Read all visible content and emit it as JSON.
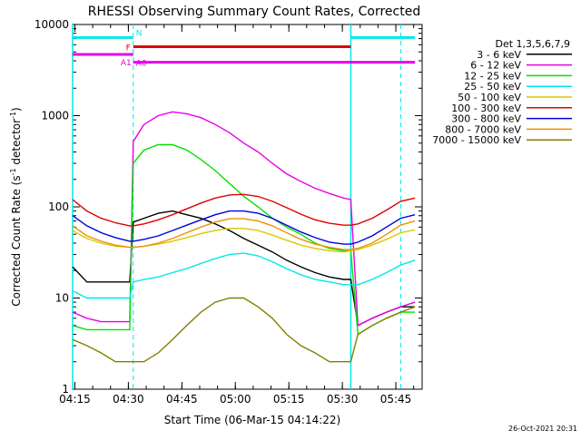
{
  "chart_data": {
    "type": "line",
    "title": "RHESSI Observing Summary Count Rates, Corrected",
    "xlabel": "Start Time (06-Mar-15 04:14:22)",
    "ylabel": "Corrected Count Rate (s",
    "ylabel_sup": "-1",
    "ylabel_mid": " detector",
    "ylabel_sup2": "-1",
    "ylabel_end": ")",
    "yscale": "log",
    "xlim": [
      0,
      98
    ],
    "ylim": [
      1,
      10000
    ],
    "x_ticks": [
      {
        "min": 0.63,
        "label": "04:15"
      },
      {
        "min": 15.63,
        "label": "04:30"
      },
      {
        "min": 30.63,
        "label": "04:45"
      },
      {
        "min": 45.63,
        "label": "05:00"
      },
      {
        "min": 60.63,
        "label": "05:15"
      },
      {
        "min": 75.63,
        "label": "05:30"
      },
      {
        "min": 90.63,
        "label": "05:45"
      }
    ],
    "y_ticks": [
      {
        "value": 1,
        "label": "1"
      },
      {
        "value": 10,
        "label": "10"
      },
      {
        "value": 100,
        "label": "100"
      },
      {
        "value": 1000,
        "label": "1000"
      },
      {
        "value": 10000,
        "label": "10000"
      }
    ],
    "legend_title": "Det 1,3,5,6,7,9",
    "legend_position": "right",
    "x": [
      0,
      4,
      8,
      12,
      16,
      17,
      20,
      24,
      28,
      32,
      36,
      40,
      44,
      48,
      52,
      56,
      60,
      64,
      68,
      72,
      76,
      78,
      80,
      84,
      88,
      92,
      96
    ],
    "series": [
      {
        "name": "3 - 6 keV",
        "color": "#000000",
        "values": [
          22,
          15,
          15,
          15,
          15,
          68,
          75,
          85,
          90,
          82,
          75,
          65,
          55,
          45,
          38,
          32,
          26,
          22,
          19,
          17,
          16,
          16,
          5,
          6,
          7,
          8,
          8
        ]
      },
      {
        "name": "6 - 12 keV",
        "color": "#e800e8",
        "values": [
          7,
          6,
          5.5,
          5.5,
          5.5,
          520,
          800,
          1000,
          1100,
          1050,
          950,
          800,
          650,
          500,
          400,
          300,
          230,
          190,
          160,
          140,
          125,
          120,
          5,
          6,
          7,
          8,
          9
        ]
      },
      {
        "name": "12 - 25 keV",
        "color": "#00e000",
        "values": [
          5,
          4.5,
          4.5,
          4.5,
          4.5,
          300,
          420,
          480,
          480,
          420,
          330,
          250,
          180,
          130,
          100,
          75,
          60,
          50,
          40,
          35,
          33,
          33,
          4,
          5,
          6,
          7,
          7
        ]
      },
      {
        "name": "25 - 50 keV",
        "color": "#00e8e8",
        "values": [
          12,
          10,
          10,
          10,
          10,
          15,
          16,
          17,
          19,
          21,
          24,
          27,
          30,
          31,
          29,
          25,
          21,
          18,
          16,
          15,
          14,
          14,
          14,
          16,
          19,
          23,
          26
        ]
      },
      {
        "name": "50 - 100 keV",
        "color": "#d8c800",
        "values": [
          55,
          45,
          40,
          37,
          36,
          36,
          37,
          39,
          42,
          46,
          51,
          55,
          58,
          58,
          55,
          49,
          43,
          38,
          35,
          33,
          32,
          33,
          34,
          38,
          44,
          52,
          56
        ]
      },
      {
        "name": "100 - 300 keV",
        "color": "#e00000",
        "values": [
          120,
          90,
          75,
          67,
          62,
          62,
          65,
          72,
          82,
          95,
          110,
          125,
          135,
          137,
          130,
          115,
          98,
          83,
          72,
          66,
          63,
          63,
          65,
          75,
          92,
          115,
          125
        ]
      },
      {
        "name": "300 - 800 keV",
        "color": "#0000e0",
        "values": [
          80,
          62,
          52,
          46,
          42,
          42,
          44,
          48,
          55,
          63,
          72,
          82,
          90,
          90,
          85,
          75,
          63,
          53,
          46,
          41,
          39,
          39,
          41,
          48,
          60,
          75,
          82
        ]
      },
      {
        "name": "800 - 7000 keV",
        "color": "#f09000",
        "values": [
          62,
          48,
          42,
          38,
          36,
          36,
          37,
          40,
          45,
          52,
          60,
          68,
          74,
          74,
          70,
          62,
          52,
          44,
          39,
          36,
          34,
          34,
          35,
          40,
          50,
          63,
          70
        ]
      },
      {
        "name": "7000 - 15000 keV",
        "color": "#808000",
        "values": [
          3.5,
          3,
          2.5,
          2,
          2,
          2,
          2,
          2.5,
          3.5,
          5,
          7,
          9,
          10,
          10,
          8,
          6,
          4,
          3,
          2.5,
          2,
          2,
          2,
          4,
          5,
          6,
          7,
          8
        ]
      }
    ],
    "annotations": {
      "top_bar": {
        "label": "N",
        "color": "#00e8e8",
        "y_value": 7200,
        "segments": [
          [
            0,
            17
          ],
          [
            78,
            96
          ]
        ]
      },
      "flare_bar": {
        "label": "F",
        "color": "#e00000",
        "y_value": 5700,
        "segments": [
          [
            17,
            78
          ]
        ]
      },
      "atten_a0": {
        "label": "A0",
        "color": "#e800e8",
        "y_value": 3850,
        "segments": [
          [
            17,
            96
          ]
        ]
      },
      "atten_a1": {
        "label": "A1",
        "color": "#e800e8",
        "y_value": 4700,
        "segments": [
          [
            0,
            17
          ]
        ]
      },
      "vertical_dashed_min": [
        17,
        92
      ],
      "vertical_solid_min": [
        0,
        78
      ],
      "vertical_line_color": "#00e8e8"
    },
    "footer_timestamp": "26-Oct-2021 20:31"
  }
}
